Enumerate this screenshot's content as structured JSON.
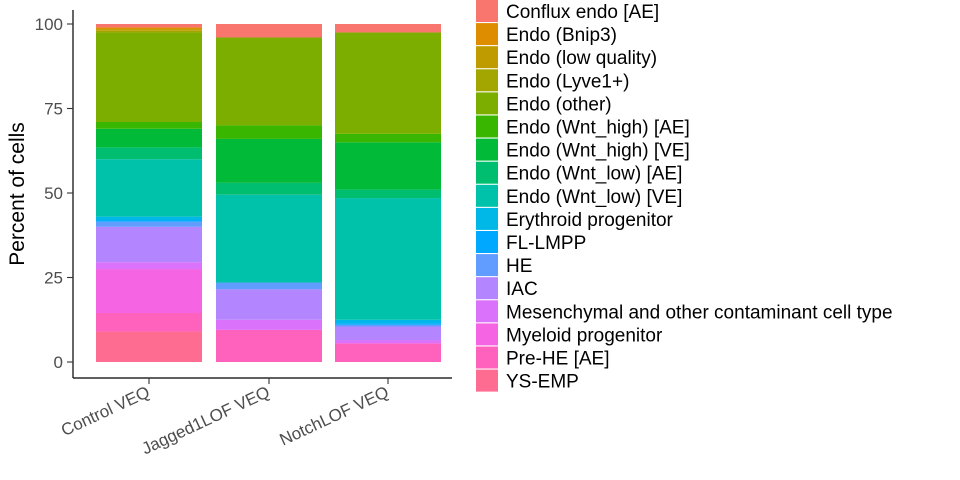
{
  "chart_data": {
    "type": "bar",
    "stacked": true,
    "title": "",
    "xlabel": "",
    "ylabel": "Percent of cells",
    "ylim": [
      0,
      100
    ],
    "yticks": [
      0,
      25,
      50,
      75,
      100
    ],
    "grid": false,
    "legend_position": "right",
    "categories": [
      "Control VEQ",
      "Jagged1LOF VEQ",
      "NotchLOF VEQ"
    ],
    "series": [
      {
        "name": "YS-EMP",
        "color": "#FF6C91",
        "values": [
          9,
          0,
          0
        ]
      },
      {
        "name": "Pre-HE [AE]",
        "color": "#FF62BC",
        "values": [
          5.5,
          9.5,
          5.5
        ]
      },
      {
        "name": "Myeloid progenitor",
        "color": "#F564E3",
        "values": [
          13,
          0,
          0
        ]
      },
      {
        "name": "Mesenchymal and other contaminant cell type",
        "color": "#DB72FB",
        "values": [
          2,
          3,
          1
        ]
      },
      {
        "name": "IAC",
        "color": "#B385FF",
        "values": [
          10.5,
          9,
          4
        ]
      },
      {
        "name": "HE",
        "color": "#619CFF",
        "values": [
          1.5,
          2,
          0.5
        ]
      },
      {
        "name": "FL-LMPP",
        "color": "#00A9FF",
        "values": [
          0.5,
          0,
          0.5
        ]
      },
      {
        "name": "Erythroid progenitor",
        "color": "#00B8E7",
        "values": [
          1,
          0,
          1
        ]
      },
      {
        "name": "Endo (Wnt_low) [VE]",
        "color": "#00C1A9",
        "values": [
          17,
          26,
          36
        ]
      },
      {
        "name": "Endo (Wnt_low) [AE]",
        "color": "#00BE70",
        "values": [
          3.5,
          3.5,
          2.5
        ]
      },
      {
        "name": "Endo (Wnt_high) [VE]",
        "color": "#00BA38",
        "values": [
          5.5,
          13,
          14
        ]
      },
      {
        "name": "Endo (Wnt_high) [AE]",
        "color": "#39B600",
        "values": [
          2,
          4,
          2.5
        ]
      },
      {
        "name": "Endo (other)",
        "color": "#7CAE00",
        "values": [
          26.5,
          26,
          30
        ]
      },
      {
        "name": "Endo (Lyve1+)",
        "color": "#A3A500",
        "values": [
          0.5,
          0,
          0
        ]
      },
      {
        "name": "Endo (low quality)",
        "color": "#C09B00",
        "values": [
          0.5,
          0,
          0
        ]
      },
      {
        "name": "Endo (Bnip3)",
        "color": "#DE8C00",
        "values": [
          0.5,
          0,
          0
        ]
      },
      {
        "name": "Conflux endo [AE]",
        "color": "#F8766D",
        "values": [
          1,
          4,
          2.5
        ]
      }
    ]
  }
}
